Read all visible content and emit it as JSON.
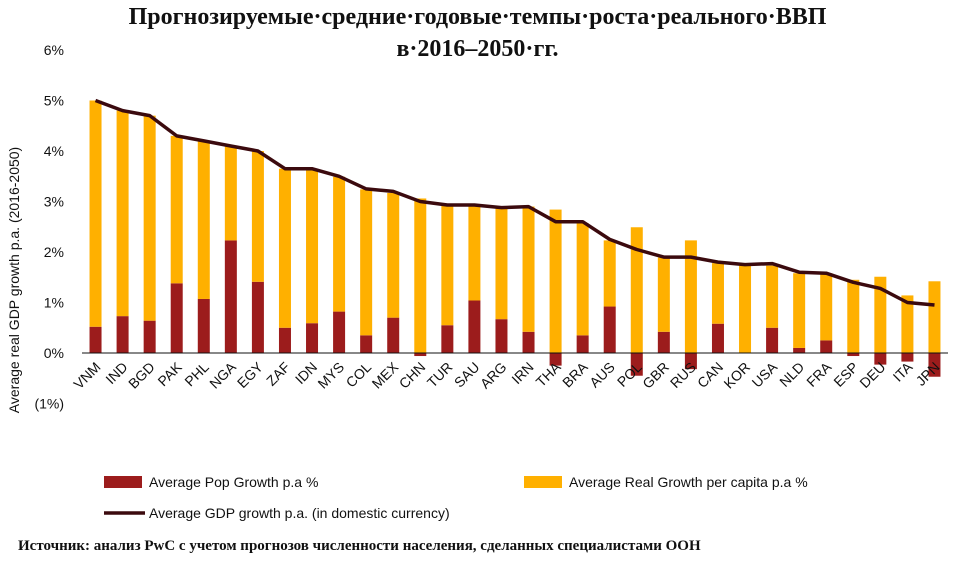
{
  "header": {
    "title_line1": "Прогнозируемые·средние·годовые·темпы·роста·реального·ВВП",
    "title_line2": "в·2016–2050·гг."
  },
  "footer": {
    "source": "Источник: анализ PwC с учетом прогнозов численности населения, сделанных специалистами ООН"
  },
  "chart_data": {
    "type": "bar",
    "stacked": true,
    "title": "Прогнозируемые·средние·годовые·темпы·роста·реального·ВВП в·2016–2050·гг.",
    "ylabel": "Average real GDP growth p.a. (2016-2050)",
    "xlabel": "",
    "ylim": [
      -1,
      6
    ],
    "yticks": [
      -1,
      0,
      1,
      2,
      3,
      4,
      5,
      6
    ],
    "ytick_labels": [
      "(1%)",
      "0%",
      "1%",
      "2%",
      "3%",
      "4%",
      "5%",
      "6%"
    ],
    "categories": [
      "VNM",
      "IND",
      "BGD",
      "PAK",
      "PHL",
      "NGA",
      "EGY",
      "ZAF",
      "IDN",
      "MYS",
      "COL",
      "MEX",
      "CHN",
      "TUR",
      "SAU",
      "ARG",
      "IRN",
      "THA",
      "BRA",
      "AUS",
      "POL",
      "GBR",
      "RUS",
      "CAN",
      "KOR",
      "USA",
      "NLD",
      "FRA",
      "ESP",
      "DEU",
      "ITA",
      "JPN"
    ],
    "series": [
      {
        "name": "Average Pop Growth p.a %",
        "kind": "bar",
        "color": "#9c1c1c",
        "values": [
          0.52,
          0.73,
          0.64,
          1.38,
          1.07,
          2.23,
          1.41,
          0.5,
          0.59,
          0.82,
          0.35,
          0.7,
          -0.06,
          0.55,
          1.04,
          0.67,
          0.42,
          -0.25,
          0.35,
          0.92,
          -0.45,
          0.42,
          -0.32,
          0.58,
          0.0,
          0.5,
          0.1,
          0.25,
          -0.06,
          -0.23,
          -0.17,
          -0.47
        ]
      },
      {
        "name": "Average Real Growth per capita p.a %",
        "kind": "bar",
        "color": "#ffb000",
        "values": [
          4.48,
          4.07,
          4.06,
          2.92,
          3.13,
          1.87,
          2.59,
          3.15,
          3.06,
          2.67,
          2.89,
          2.47,
          3.06,
          2.38,
          1.89,
          2.21,
          2.48,
          2.84,
          2.22,
          1.31,
          2.49,
          1.47,
          2.23,
          1.2,
          1.73,
          1.23,
          1.48,
          1.33,
          1.45,
          1.51,
          1.14,
          1.42
        ]
      },
      {
        "name": "Average GDP growth p.a. (in domestic currency)",
        "kind": "line",
        "color": "#3b0a0e",
        "values": [
          5.0,
          4.8,
          4.7,
          4.3,
          4.2,
          4.1,
          4.0,
          3.65,
          3.65,
          3.5,
          3.25,
          3.2,
          3.0,
          2.93,
          2.93,
          2.88,
          2.9,
          2.6,
          2.6,
          2.25,
          2.05,
          1.9,
          1.9,
          1.8,
          1.75,
          1.77,
          1.6,
          1.58,
          1.4,
          1.28,
          1.0,
          0.95
        ]
      }
    ],
    "legend": [
      {
        "label": "Average Pop Growth p.a %",
        "swatch": "bar",
        "color": "#9c1c1c"
      },
      {
        "label": "Average Real Growth per capita p.a %",
        "swatch": "bar",
        "color": "#ffb000"
      },
      {
        "label": "Average GDP growth p.a. (in domestic currency)",
        "swatch": "line",
        "color": "#3b0a0e"
      }
    ],
    "legend_position": "bottom",
    "grid": false
  }
}
